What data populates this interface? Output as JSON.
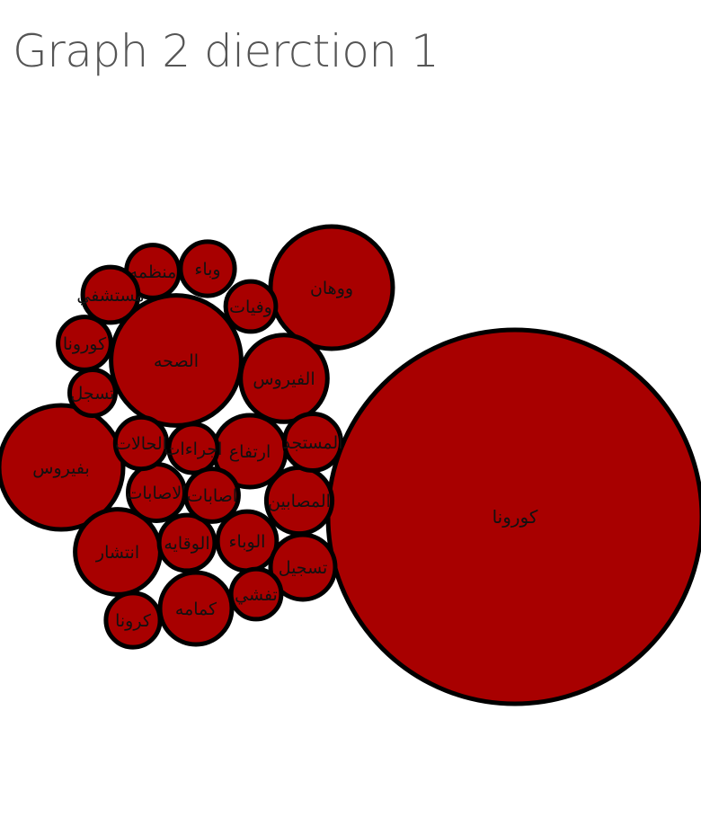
{
  "title": "Graph 2 dierction 1",
  "chart_data": {
    "type": "bubble",
    "title": "Graph 2 dierction 1",
    "colors": {
      "bubble_fill": "#a80000",
      "bubble_stroke": "#000000"
    },
    "bubbles": [
      {
        "label": "كورونا",
        "value": 100
      },
      {
        "label": "ووهان",
        "value": 10.7
      },
      {
        "label": "بفيروس",
        "value": 11.0
      },
      {
        "label": "الصحه",
        "value": 12.1
      },
      {
        "label": "الفيروس",
        "value": 5.4
      },
      {
        "label": "انتشار",
        "value": 5.2
      },
      {
        "label": "ارتفاع",
        "value": 3.7
      },
      {
        "label": "المصابين",
        "value": 3.1
      },
      {
        "label": "كمامه",
        "value": 3.7
      },
      {
        "label": "الوباء",
        "value": 2.5
      },
      {
        "label": "الوقايه",
        "value": 2.2
      },
      {
        "label": "تسجيل",
        "value": 3.0
      },
      {
        "label": "الاصابات",
        "value": 2.3
      },
      {
        "label": "المستجد",
        "value": 2.3
      },
      {
        "label": "الحالات",
        "value": 1.9
      },
      {
        "label": "اجراءات",
        "value": 1.7
      },
      {
        "label": "اصابات",
        "value": 2.0
      },
      {
        "label": "كرونا",
        "value": 2.1
      },
      {
        "label": "تفشي",
        "value": 1.8
      },
      {
        "label": "منظمه",
        "value": 2.0
      },
      {
        "label": "وباء",
        "value": 2.1
      },
      {
        "label": "مستشفي",
        "value": 2.2
      },
      {
        "label": "كورونا",
        "value": 2.0
      },
      {
        "label": "وفيات",
        "value": 1.8
      },
      {
        "label": "تسجل",
        "value": 1.5
      }
    ]
  }
}
